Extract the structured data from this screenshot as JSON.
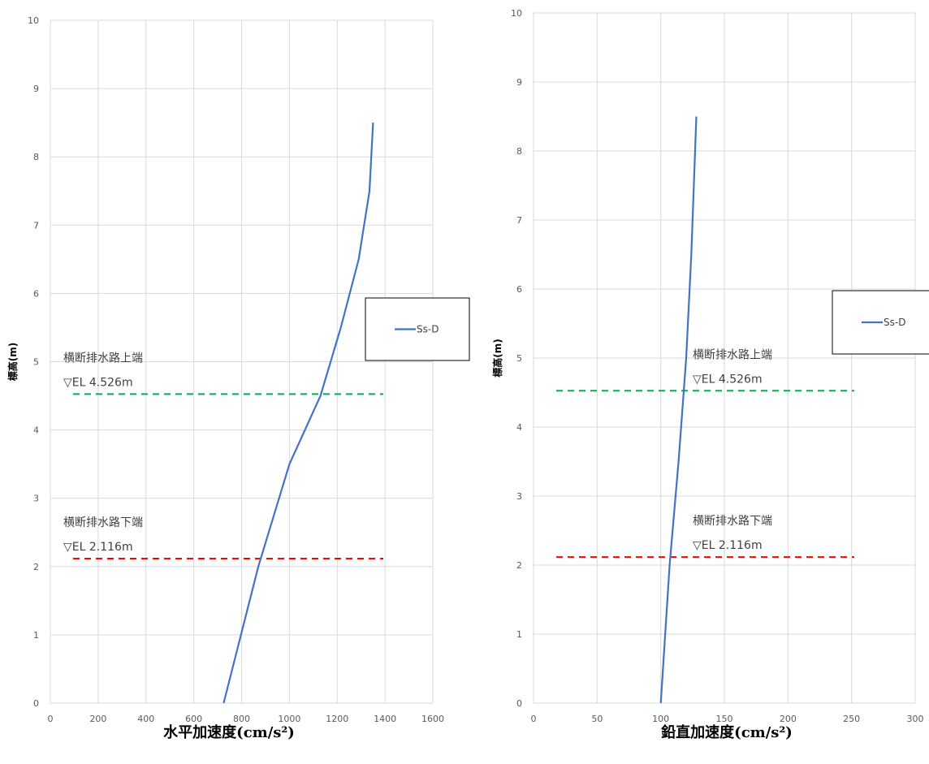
{
  "chart_data": [
    {
      "type": "line",
      "xlabel": "水平加速度(cm/s²)",
      "ylabel": "標高(m)",
      "xlim": [
        0,
        1600
      ],
      "ylim": [
        0,
        10
      ],
      "xticks": [
        0,
        200,
        400,
        600,
        800,
        1000,
        1200,
        1400,
        1600
      ],
      "yticks": [
        0,
        1,
        2,
        3,
        4,
        5,
        6,
        7,
        8,
        9,
        10
      ],
      "grid": true,
      "legend_position": "right",
      "series": [
        {
          "name": "Ss-D",
          "color": "#4472c4",
          "points": [
            [
              725,
              0
            ],
            [
              870,
              2
            ],
            [
              1000,
              3.5
            ],
            [
              1130,
              4.5
            ],
            [
              1215,
              5.5
            ],
            [
              1290,
              6.5
            ],
            [
              1335,
              7.5
            ],
            [
              1350,
              8.5
            ]
          ]
        }
      ],
      "annotations": [
        {
          "label": "横断排水路上端",
          "value_label": "▽EL 4.526m",
          "y": 4.526,
          "color": "#00b050"
        },
        {
          "label": "横断排水路下端",
          "value_label": "▽EL 2.116m",
          "y": 2.116,
          "color": "#ff0000"
        }
      ]
    },
    {
      "type": "line",
      "xlabel": "鉛直加速度(cm/s²)",
      "ylabel": "標高(m)",
      "xlim": [
        0,
        300
      ],
      "ylim": [
        0,
        10
      ],
      "xticks": [
        0,
        50,
        100,
        150,
        200,
        250,
        300
      ],
      "yticks": [
        0,
        1,
        2,
        3,
        4,
        5,
        6,
        7,
        8,
        9,
        10
      ],
      "grid": true,
      "legend_position": "right",
      "series": [
        {
          "name": "Ss-D",
          "color": "#4472c4",
          "points": [
            [
              100,
              0
            ],
            [
              107,
              2
            ],
            [
              114,
              3.5
            ],
            [
              120,
              5
            ],
            [
              124,
              6.5
            ],
            [
              126,
              7.5
            ],
            [
              128,
              8.5
            ]
          ]
        }
      ],
      "annotations": [
        {
          "label": "横断排水路上端",
          "value_label": "▽EL 4.526m",
          "y": 4.526,
          "color": "#00b050"
        },
        {
          "label": "横断排水路下端",
          "value_label": "▽EL 2.116m",
          "y": 2.116,
          "color": "#ff0000"
        }
      ]
    }
  ]
}
